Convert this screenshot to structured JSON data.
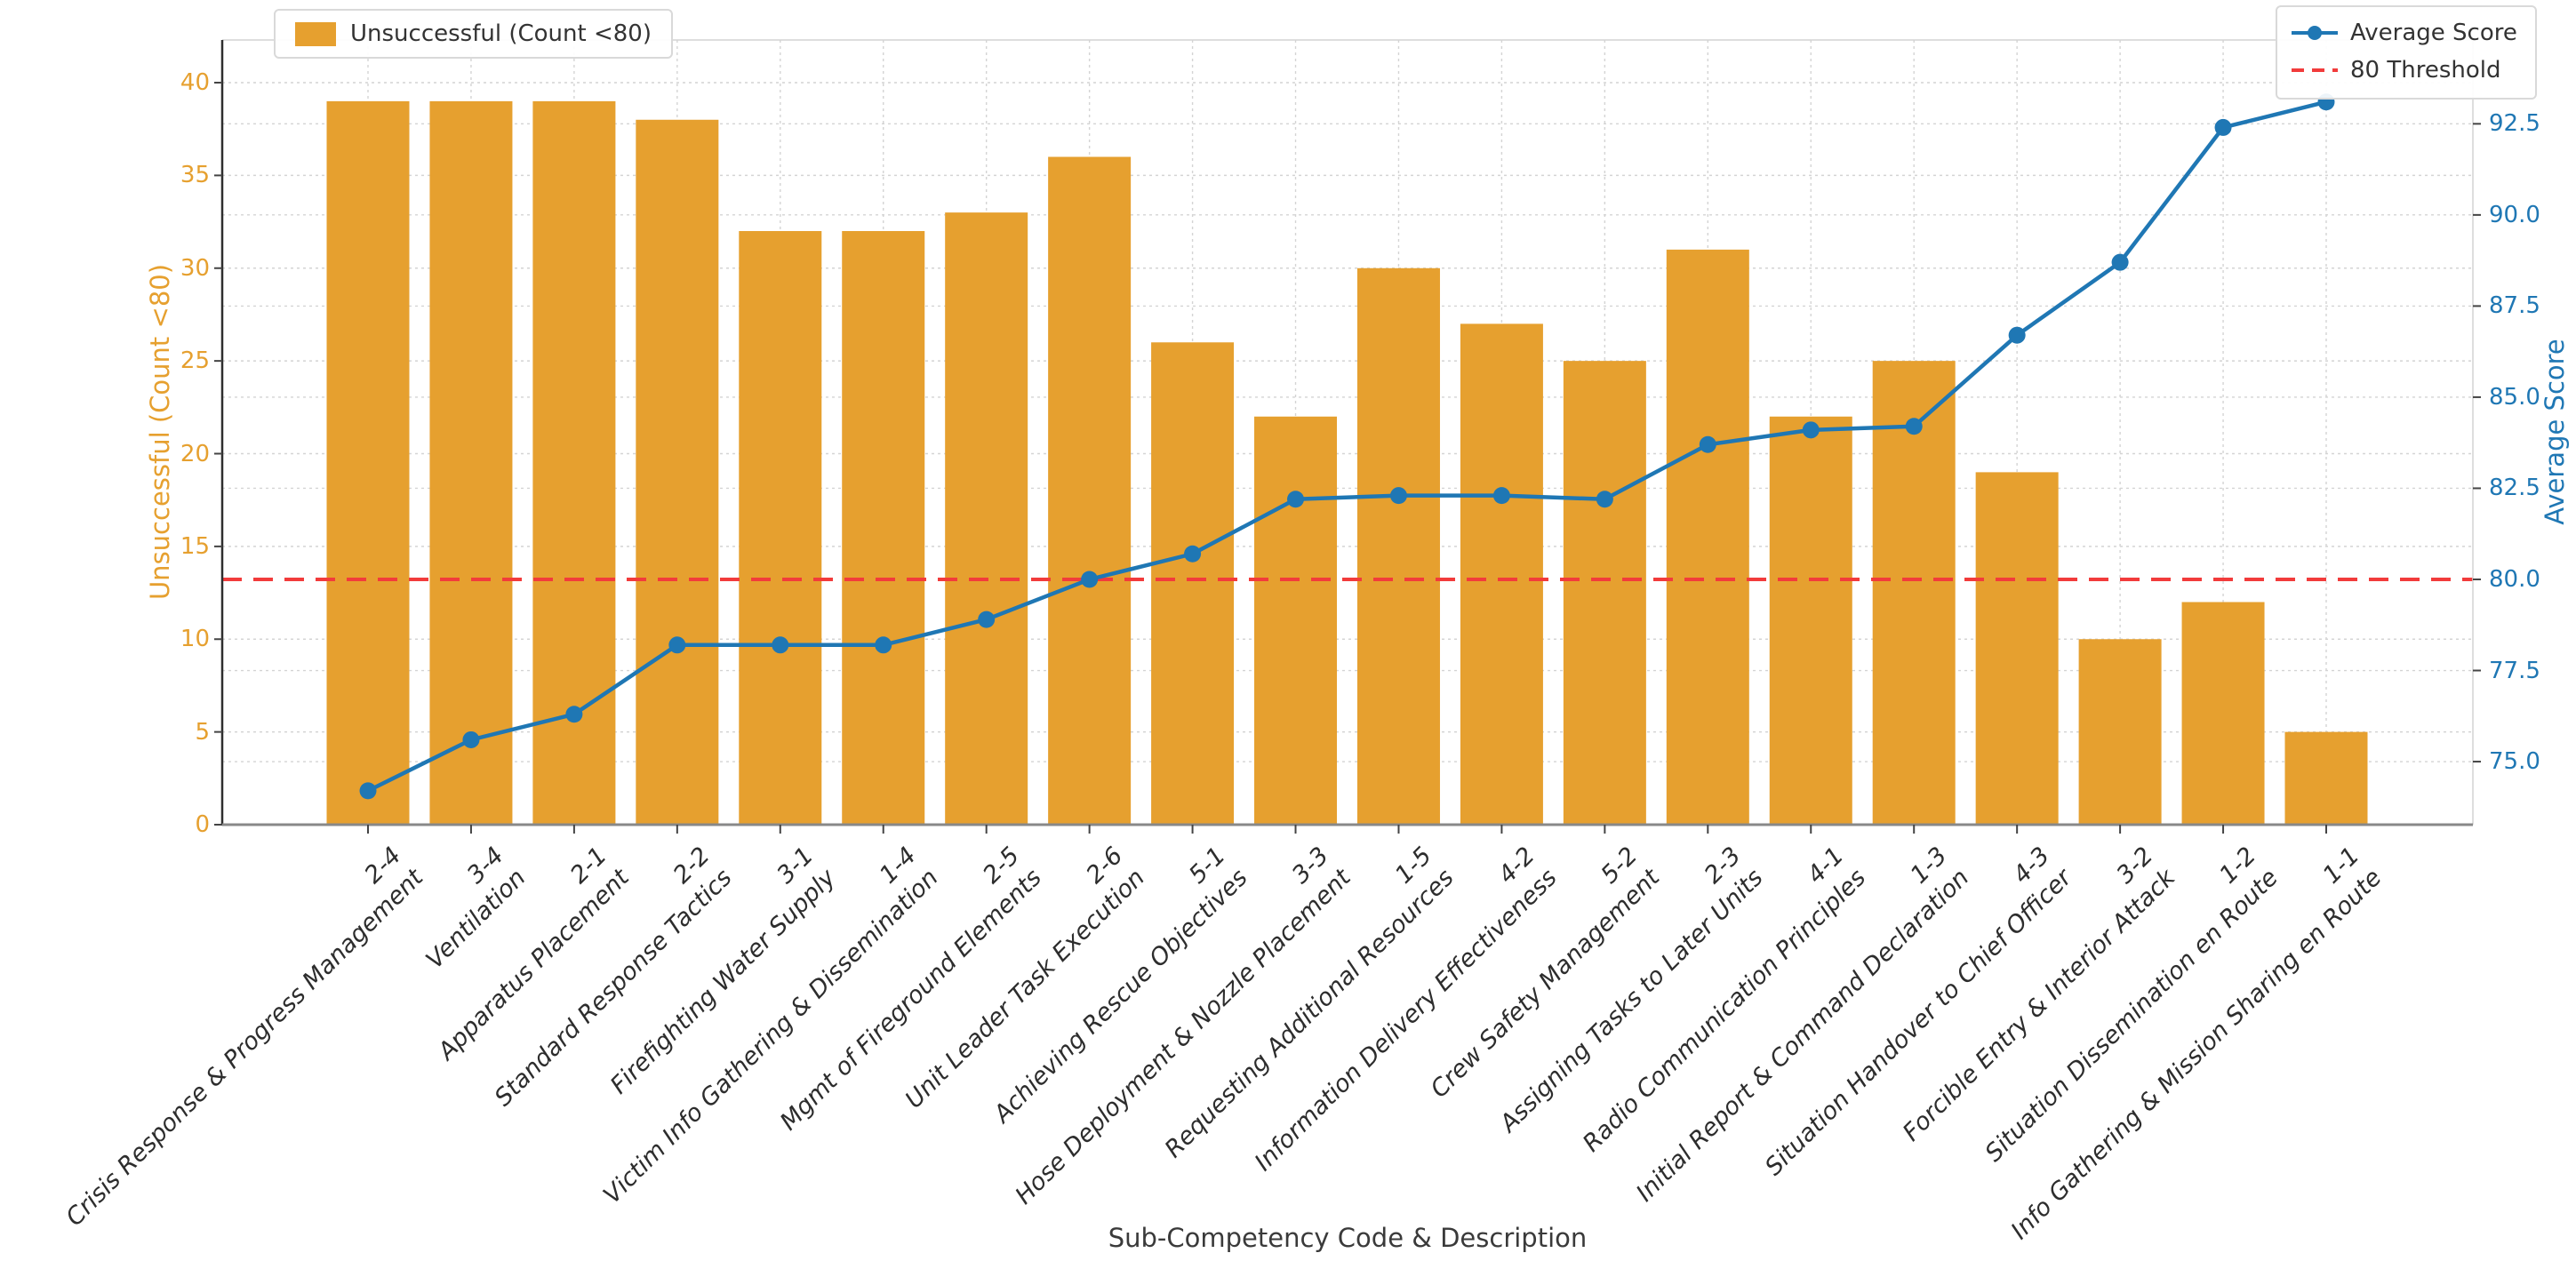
{
  "figure": {
    "legend_bar": "Unsuccessful (Count <80)",
    "legend_line": "Average Score",
    "legend_threshold": "80 Threshold"
  },
  "colors": {
    "bar": "#E6A02F",
    "line": "#1F77B4",
    "threshold": "#F23B3B",
    "grid": "#d4d4d4",
    "left_text": "#E6A02F",
    "right_text": "#1F77B4",
    "xtick_text": "#2d2d2d"
  },
  "chart_data": {
    "type": "bar",
    "subtype": "dual-axis bar + line combo",
    "title": "",
    "xlabel": "Sub-Competency Code & Description",
    "categories": [
      "2-4",
      "3-4",
      "2-1",
      "2-2",
      "3-1",
      "1-4",
      "2-5",
      "2-6",
      "5-1",
      "3-3",
      "1-5",
      "4-2",
      "5-2",
      "2-3",
      "4-1",
      "1-3",
      "4-3",
      "3-2",
      "1-2",
      "1-1"
    ],
    "category_descriptions": [
      "Crisis Response & Progress Management",
      "Ventilation",
      "Apparatus Placement",
      "Standard Response Tactics",
      "Firefighting Water Supply",
      "Victim Info Gathering & Dissemination",
      "Mgmt of Fireground Elements",
      "Unit Leader Task Execution",
      "Achieving Rescue Objectives",
      "Hose Deployment & Nozzle Placement",
      "Requesting Additional Resources",
      "Information Delivery Effectiveness",
      "Crew Safety Management",
      "Assigning Tasks to Later Units",
      "Radio Communication Principles",
      "Initial Report & Command Declaration",
      "Situation Handover to Chief Officer",
      "Forcible Entry & Interior Attack",
      "Situation Dissemination en Route",
      "Info Gathering & Mission Sharing en Route"
    ],
    "series": [
      {
        "name": "Unsuccessful (Count <80)",
        "type": "bar",
        "axis": "left",
        "values": [
          39,
          39,
          39,
          38,
          32,
          32,
          33,
          36,
          26,
          22,
          30,
          27,
          25,
          31,
          22,
          25,
          19,
          10,
          12,
          5
        ]
      },
      {
        "name": "Average Score",
        "type": "line",
        "axis": "right",
        "values": [
          74.2,
          75.6,
          76.3,
          78.2,
          78.2,
          78.2,
          78.9,
          80.0,
          80.7,
          82.2,
          82.3,
          82.3,
          82.2,
          83.7,
          84.1,
          84.2,
          86.7,
          88.7,
          92.4,
          93.1
        ]
      }
    ],
    "threshold": {
      "value": 80,
      "label": "80 Threshold"
    },
    "left_axis": {
      "label": "Unsuccessful (Count <80)",
      "ticks": [
        0,
        5,
        10,
        15,
        20,
        25,
        30,
        35,
        40
      ],
      "range": [
        0,
        42.3
      ]
    },
    "right_axis": {
      "label": "Average Score",
      "ticks": [
        75.0,
        77.5,
        80.0,
        82.5,
        85.0,
        87.5,
        90.0,
        92.5
      ],
      "range": [
        73.27,
        94.8
      ]
    },
    "grid": true,
    "legend_positions": [
      "upper left",
      "upper right"
    ]
  }
}
